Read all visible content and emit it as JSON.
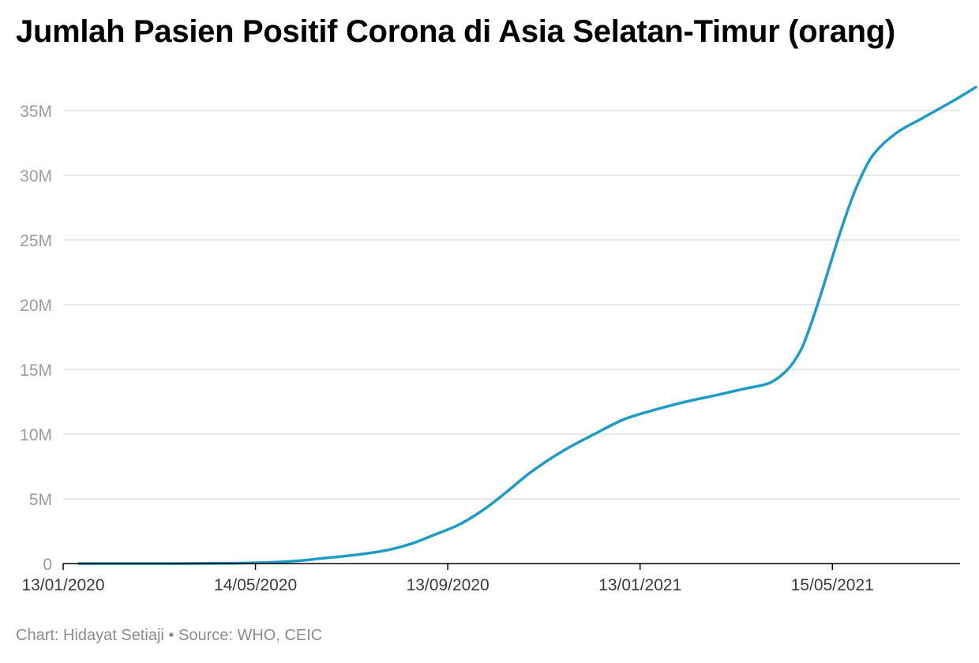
{
  "chart_data": {
    "type": "line",
    "title": "Jumlah Pasien Positif Corona di Asia Selatan-Timur (orang)",
    "xlabel": "",
    "ylabel": "",
    "x_range": [
      "2020-01-13",
      "2021-08-04"
    ],
    "ylim": [
      0,
      35000000
    ],
    "y_ticks": [
      0,
      5000000,
      10000000,
      15000000,
      20000000,
      25000000,
      30000000,
      35000000
    ],
    "y_tick_labels": [
      "0",
      "5M",
      "10M",
      "15M",
      "20M",
      "25M",
      "30M",
      "35M"
    ],
    "x_ticks": [
      "2020-01-13",
      "2020-05-14",
      "2020-09-13",
      "2021-01-13",
      "2021-05-15"
    ],
    "x_tick_labels": [
      "13/01/2020",
      "14/05/2020",
      "13/09/2020",
      "13/01/2021",
      "15/05/2021"
    ],
    "grid": true,
    "legend": "none",
    "colors": {
      "line": "#1f9bc7",
      "grid": "#e0e0e0",
      "axis": "#000000",
      "tick_text": "#9b9b9b"
    },
    "series": [
      {
        "x": [
          "2020-01-13",
          "2020-02-13",
          "2020-03-15",
          "2020-04-15",
          "2020-05-10",
          "2020-05-30",
          "2020-06-15",
          "2020-07-05",
          "2020-07-25",
          "2020-08-10",
          "2020-08-25",
          "2020-09-10",
          "2020-09-25",
          "2020-10-10",
          "2020-10-25",
          "2020-11-15",
          "2020-12-05",
          "2020-12-25",
          "2021-01-13",
          "2021-02-01",
          "2021-02-20",
          "2021-03-10",
          "2021-03-25",
          "2021-04-05",
          "2021-04-15",
          "2021-04-22",
          "2021-04-30",
          "2021-05-10",
          "2021-05-20",
          "2021-05-31",
          "2021-06-15",
          "2021-07-01",
          "2021-07-20",
          "2021-08-04"
        ],
        "y": [
          0,
          0,
          0,
          20000,
          80000,
          200000,
          400000,
          650000,
          1000000,
          1500000,
          2200000,
          3000000,
          4100000,
          5500000,
          7000000,
          8700000,
          10000000,
          11200000,
          11900000,
          12500000,
          13000000,
          13500000,
          13900000,
          14800000,
          16500000,
          18700000,
          21700000,
          25600000,
          29000000,
          31600000,
          33300000,
          34400000,
          35700000,
          36800000
        ]
      }
    ]
  },
  "footer": {
    "text": "Chart: Hidayat Setiaji • Source: WHO, CEIC"
  }
}
